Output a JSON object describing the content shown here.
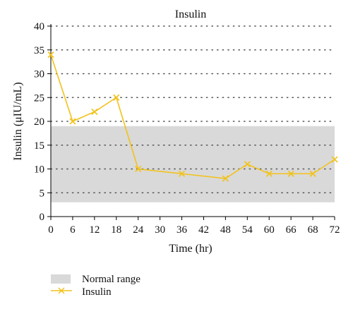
{
  "chart_data": {
    "type": "line",
    "title": "Insulin",
    "xlabel": "Time (hr)",
    "ylabel": "Insulin (μIU/mL)",
    "x_ticks": [
      0,
      6,
      12,
      18,
      24,
      30,
      36,
      42,
      48,
      54,
      60,
      66,
      68,
      72
    ],
    "y_ticks": [
      0,
      5,
      10,
      15,
      20,
      25,
      30,
      35,
      40
    ],
    "ylim": [
      0,
      40
    ],
    "grid": "horizontal dotted lines at each y tick",
    "normal_range": {
      "label": "Normal range",
      "y_min": 3,
      "y_max": 19
    },
    "series": [
      {
        "name": "Insulin",
        "marker": "x",
        "points": [
          {
            "x": 0,
            "y": 34
          },
          {
            "x": 6,
            "y": 20
          },
          {
            "x": 12,
            "y": 22
          },
          {
            "x": 18,
            "y": 25
          },
          {
            "x": 24,
            "y": 10
          },
          {
            "x": 36,
            "y": 9
          },
          {
            "x": 48,
            "y": 8
          },
          {
            "x": 54,
            "y": 11
          },
          {
            "x": 60,
            "y": 9
          },
          {
            "x": 66,
            "y": 9
          },
          {
            "x": 68,
            "y": 9
          },
          {
            "x": 72,
            "y": 12
          }
        ]
      }
    ],
    "legend": {
      "position": "bottom-left",
      "entries": [
        "Normal range",
        "Insulin"
      ]
    },
    "colors": {
      "line": "#f2c21b",
      "normal_range": "#d9d9d9",
      "axis": "#000000",
      "grid": "#555555"
    }
  }
}
